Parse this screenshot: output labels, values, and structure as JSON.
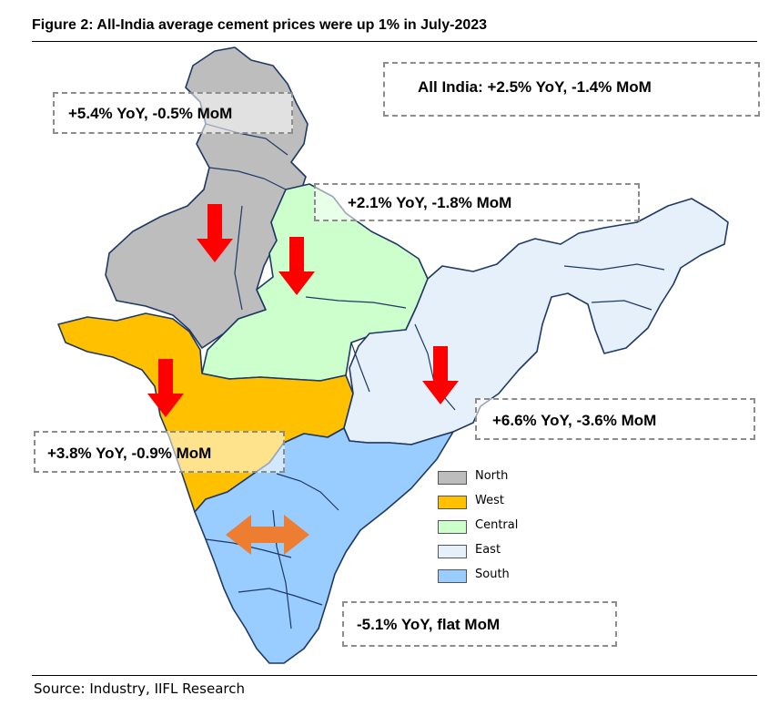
{
  "figure": {
    "title": "Figure 2: All-India average cement prices were up 1% in July-2023",
    "source": "Source: Industry, IIFL Research"
  },
  "colors": {
    "north": "#bdbdbd",
    "west": "#ffc000",
    "central": "#ccffcc",
    "east": "#e6f0fb",
    "south": "#99ccff",
    "down_arrow": "#ff0000",
    "flat_arrow": "#ed7d31",
    "border": "#1f3864",
    "callout_border": "#8c8c8c"
  },
  "callouts": {
    "all_india": "All India: +2.5% YoY, -1.4% MoM",
    "north": "+5.4% YoY, -0.5% MoM",
    "central": "+2.1% YoY, -1.8% MoM",
    "east": "+6.6% YoY, -3.6% MoM",
    "west": "+3.8% YoY, -0.9% MoM",
    "south": "-5.1% YoY, flat MoM"
  },
  "legend": [
    {
      "label": "North",
      "color": "#bdbdbd"
    },
    {
      "label": "West",
      "color": "#ffc000"
    },
    {
      "label": "Central",
      "color": "#ccffcc"
    },
    {
      "label": "East",
      "color": "#e6f0fb"
    },
    {
      "label": "South",
      "color": "#99ccff"
    }
  ],
  "arrows": [
    {
      "region": "North",
      "direction": "down"
    },
    {
      "region": "Central",
      "direction": "down"
    },
    {
      "region": "West",
      "direction": "down"
    },
    {
      "region": "East",
      "direction": "down"
    },
    {
      "region": "South",
      "direction": "flat"
    }
  ]
}
